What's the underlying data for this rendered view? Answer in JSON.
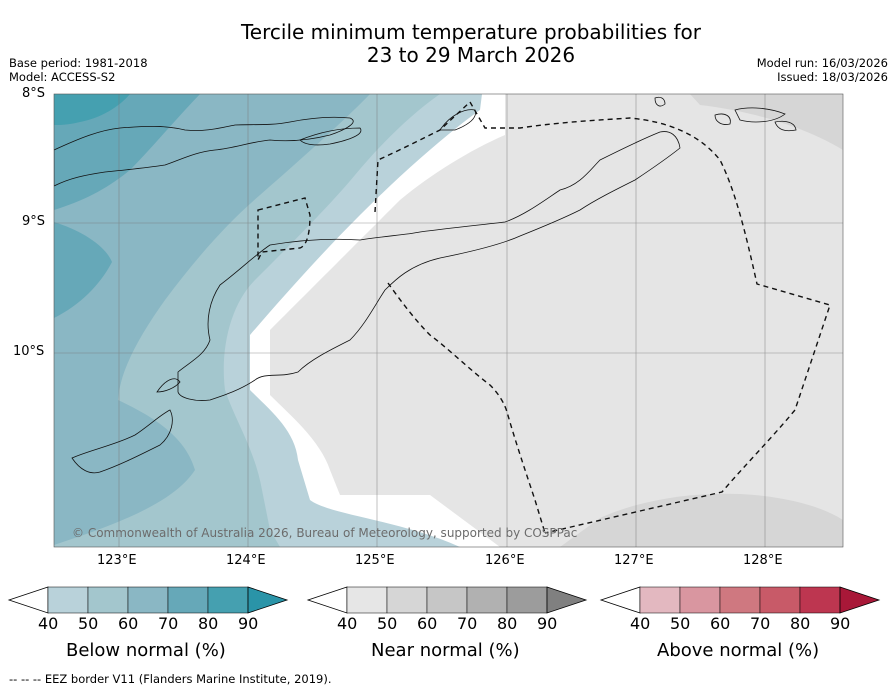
{
  "title": {
    "line1": "Tercile minimum temperature probabilities for",
    "line2": "23 to 29 March 2026"
  },
  "meta": {
    "base_period": "Base period: 1981-2018",
    "model": "Model: ACCESS-S2",
    "model_run": "Model run: 16/03/2026",
    "issued": "Issued: 18/03/2026"
  },
  "map": {
    "lat_labels": [
      "8°S",
      "9°S",
      "10°S"
    ],
    "lon_labels": [
      "123°E",
      "124°E",
      "125°E",
      "126°E",
      "127°E",
      "128°E"
    ],
    "copyright": "© Commonwealth of Australia 2026, Bureau of Meteorology, supported by COSPPac"
  },
  "colorbars": [
    {
      "name": "below-normal",
      "title": "Below normal (%)",
      "ticks": [
        "40",
        "50",
        "60",
        "70",
        "80",
        "90"
      ],
      "colors": [
        "#b9d2da",
        "#a3c6cd",
        "#8ab7c4",
        "#66a8b8",
        "#45a0b0",
        "#2a94a8"
      ]
    },
    {
      "name": "near-normal",
      "title": "Near normal (%)",
      "ticks": [
        "40",
        "50",
        "60",
        "70",
        "80",
        "90"
      ],
      "colors": [
        "#e6e6e6",
        "#d6d6d6",
        "#c6c6c6",
        "#b1b1b1",
        "#9c9c9c",
        "#808080"
      ]
    },
    {
      "name": "above-normal",
      "title": "Above normal (%)",
      "ticks": [
        "40",
        "50",
        "60",
        "70",
        "80",
        "90"
      ],
      "colors": [
        "#e3b8c0",
        "#d996a0",
        "#cf7880",
        "#c85a68",
        "#bd3650",
        "#a81838"
      ]
    }
  ],
  "footer": {
    "eez_note": "--  --  -- EEZ border V11 (Flanders Marine Institute, 2019)."
  }
}
